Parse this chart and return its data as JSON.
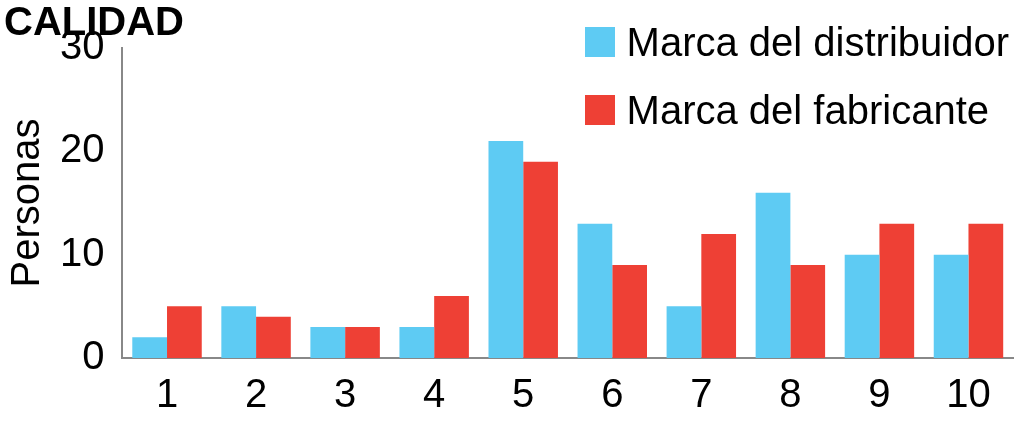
{
  "chart_data": {
    "type": "bar",
    "title": "CALIDAD",
    "ylabel": "Personas",
    "categories": [
      "1",
      "2",
      "3",
      "4",
      "5",
      "6",
      "7",
      "8",
      "9",
      "10"
    ],
    "series": [
      {
        "name": "Marca del distribuidor",
        "color": "#5ecbf3",
        "values": [
          2,
          5,
          3,
          3,
          21,
          13,
          5,
          16,
          10,
          10
        ]
      },
      {
        "name": "Marca del fabricante",
        "color": "#ee4035",
        "values": [
          5,
          4,
          3,
          6,
          19,
          9,
          12,
          9,
          13,
          13
        ]
      }
    ],
    "ylim": [
      0,
      30
    ],
    "yticks": [
      0,
      10,
      20,
      30
    ],
    "grid": false,
    "legend": "top right"
  }
}
